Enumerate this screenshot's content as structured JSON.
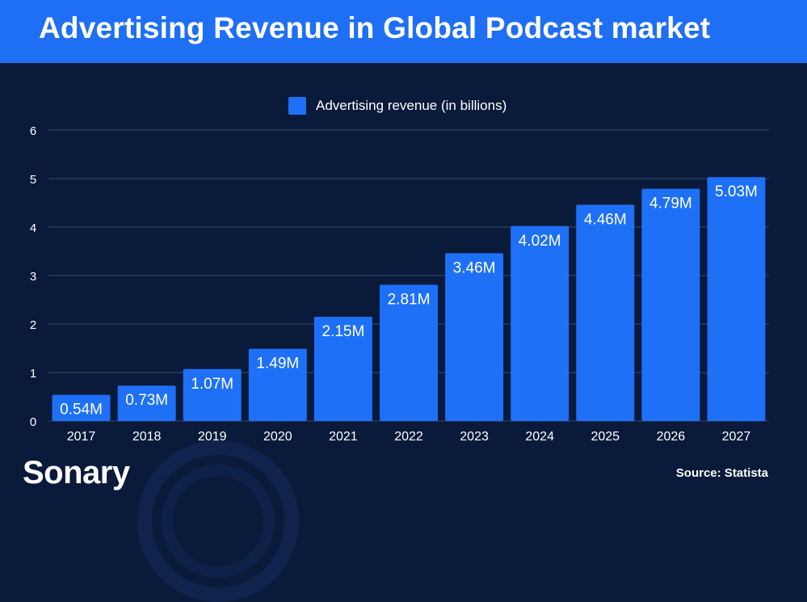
{
  "header": {
    "title": "Advertising Revenue in Global Podcast market"
  },
  "footer": {
    "brand": "Sonary",
    "source": "Source: Statista"
  },
  "colors": {
    "background": "#0a1a3a",
    "accent": "#1f6ff5",
    "bar": "#1e70f7",
    "grid": "#3a4b6e"
  },
  "chart_data": {
    "type": "bar",
    "title": "Advertising Revenue in Global Podcast market",
    "xlabel": "",
    "ylabel": "",
    "legend": [
      "Advertising revenue (in billions)"
    ],
    "legend_position": "top-center",
    "grid": true,
    "ylim": [
      0,
      6
    ],
    "yticks": [
      "0",
      "1",
      "2",
      "3",
      "4",
      "5",
      "6"
    ],
    "categories": [
      "2017",
      "2018",
      "2019",
      "2020",
      "2021",
      "2022",
      "2023",
      "2024",
      "2025",
      "2026",
      "2027"
    ],
    "series": [
      {
        "name": "Advertising revenue (in billions)",
        "values": [
          0.54,
          0.73,
          1.07,
          1.49,
          2.15,
          2.81,
          3.46,
          4.02,
          4.46,
          4.79,
          5.03
        ],
        "labels": [
          "0.54M",
          "0.73M",
          "1.07M",
          "1.49M",
          "2.15M",
          "2.81M",
          "3.46M",
          "4.02M",
          "4.46M",
          "4.79M",
          "5.03M"
        ]
      }
    ]
  }
}
